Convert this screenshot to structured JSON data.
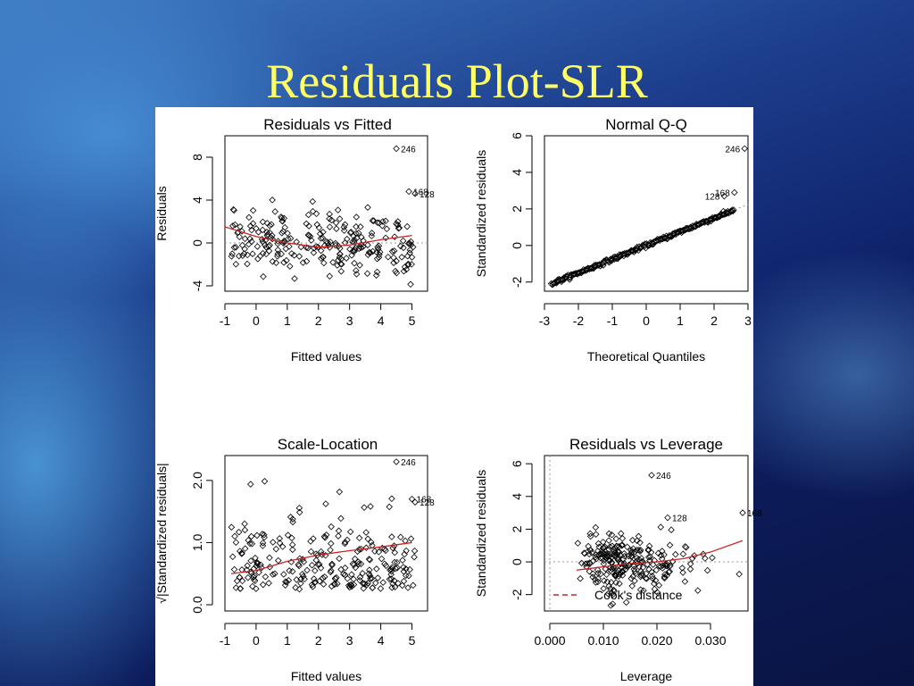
{
  "slide": {
    "title": "Residuals Plot-SLR"
  },
  "chart_data": [
    {
      "type": "scatter",
      "title": "Residuals vs Fitted",
      "xlabel": "Fitted values",
      "ylabel": "Residuals",
      "xlim": [
        -1,
        5.5
      ],
      "ylim": [
        -4.5,
        10
      ],
      "xticks": [
        -1,
        0,
        1,
        2,
        3,
        4,
        5
      ],
      "yticks": [
        -4,
        0,
        4,
        8
      ],
      "reference_line": 0,
      "labeled_points": [
        {
          "label": "246",
          "x": 4.5,
          "y": 8.8
        },
        {
          "label": "168",
          "x": 4.9,
          "y": 4.8
        },
        {
          "label": "128",
          "x": 5.1,
          "y": 4.6
        }
      ],
      "smooth": [
        [
          -1,
          1.5
        ],
        [
          0,
          0.6
        ],
        [
          1,
          0.0
        ],
        [
          2,
          -0.4
        ],
        [
          3,
          -0.2
        ],
        [
          4,
          0.3
        ],
        [
          5,
          0.7
        ]
      ]
    },
    {
      "type": "scatter",
      "title": "Normal Q-Q",
      "xlabel": "Theoretical Quantiles",
      "ylabel": "Standardized residuals",
      "xlim": [
        -3,
        3
      ],
      "ylim": [
        -2.5,
        6
      ],
      "xticks": [
        -3,
        -2,
        -1,
        0,
        1,
        2,
        3
      ],
      "yticks": [
        -2,
        0,
        2,
        4,
        6
      ],
      "labeled_points": [
        {
          "label": "246",
          "x": 2.9,
          "y": 5.3
        },
        {
          "label": "168",
          "x": 2.6,
          "y": 2.9
        },
        {
          "label": "128",
          "x": 2.3,
          "y": 2.7
        }
      ]
    },
    {
      "type": "scatter",
      "title": "Scale-Location",
      "xlabel": "Fitted values",
      "ylabel": "√|Standardized residuals|",
      "xlim": [
        -1,
        5.5
      ],
      "ylim": [
        -0.1,
        2.4
      ],
      "xticks": [
        -1,
        0,
        1,
        2,
        3,
        4,
        5
      ],
      "yticks": [
        0.0,
        1.0,
        2.0
      ],
      "ytick_labels": [
        "0.0",
        "1.0",
        "2.0"
      ],
      "labeled_points": [
        {
          "label": "246",
          "x": 4.5,
          "y": 2.3
        },
        {
          "label": "168",
          "x": 5.0,
          "y": 1.7
        },
        {
          "label": "128",
          "x": 5.1,
          "y": 1.65
        }
      ],
      "smooth": [
        [
          -0.8,
          0.5
        ],
        [
          0,
          0.55
        ],
        [
          1,
          0.7
        ],
        [
          2,
          0.8
        ],
        [
          3,
          0.87
        ],
        [
          4,
          0.93
        ],
        [
          5,
          1.0
        ]
      ]
    },
    {
      "type": "scatter",
      "title": "Residuals vs Leverage",
      "xlabel": "Leverage",
      "ylabel": "Standardized residuals",
      "xlim": [
        -0.001,
        0.037
      ],
      "ylim": [
        -3,
        6.5
      ],
      "xticks": [
        0.0,
        0.01,
        0.02,
        0.03
      ],
      "xtick_labels": [
        "0.000",
        "0.010",
        "0.020",
        "0.030"
      ],
      "yticks": [
        -2,
        0,
        2,
        4,
        6
      ],
      "reference_line": 0,
      "legend": {
        "label": "Cook's distance",
        "placement": "bottom-left"
      },
      "labeled_points": [
        {
          "label": "246",
          "x": 0.019,
          "y": 5.3
        },
        {
          "label": "128",
          "x": 0.022,
          "y": 2.7
        },
        {
          "label": "168",
          "x": 0.036,
          "y": 3.0
        }
      ],
      "smooth": [
        [
          0.005,
          -0.5
        ],
        [
          0.01,
          -0.3
        ],
        [
          0.015,
          -0.1
        ],
        [
          0.02,
          0.0
        ],
        [
          0.025,
          0.2
        ],
        [
          0.03,
          0.6
        ],
        [
          0.036,
          1.3
        ]
      ]
    }
  ]
}
